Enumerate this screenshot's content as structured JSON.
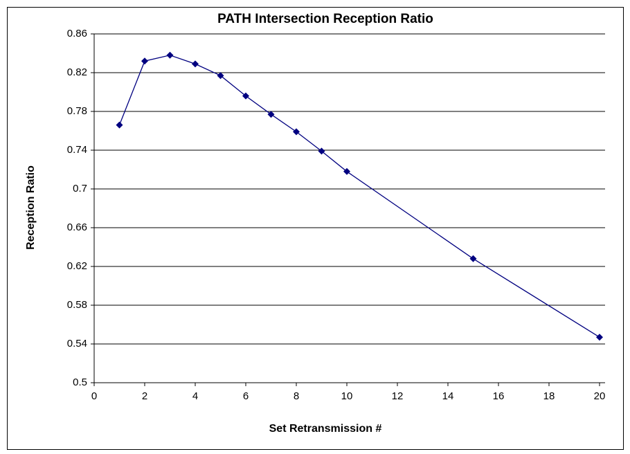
{
  "chart_data": {
    "type": "line",
    "title": "PATH Intersection Reception Ratio",
    "xlabel": "Set Retransmission #",
    "ylabel": "Reception Ratio",
    "x": [
      1,
      2,
      3,
      4,
      5,
      6,
      7,
      8,
      9,
      10,
      15,
      20
    ],
    "series": [
      {
        "name": "Reception Ratio",
        "color": "#000080",
        "values": [
          0.766,
          0.832,
          0.838,
          0.829,
          0.817,
          0.796,
          0.777,
          0.759,
          0.739,
          0.718,
          0.628,
          0.547
        ]
      }
    ],
    "xlim": [
      0,
      20
    ],
    "xticks": [
      0,
      2,
      4,
      6,
      8,
      10,
      12,
      14,
      16,
      18,
      20
    ],
    "ylim": [
      0.5,
      0.86
    ],
    "yticks": [
      0.5,
      0.54,
      0.58,
      0.62,
      0.66,
      0.7,
      0.74,
      0.78,
      0.82,
      0.86
    ],
    "grid": true
  }
}
